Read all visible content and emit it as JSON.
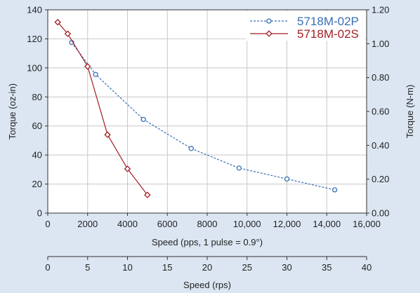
{
  "chart_data": {
    "type": "line",
    "title": "",
    "xlabel": "Speed (pps, 1 pulse = 0.9°)",
    "ylabel_left": "Torque (oz-in)",
    "ylabel_right": "Torque (N-m)",
    "xlabel_secondary": "Speed (rps)",
    "xlim": [
      0,
      16000
    ],
    "ylim_left": [
      0,
      140
    ],
    "ylim_right": [
      0,
      1.2
    ],
    "xlim_secondary": [
      0,
      40
    ],
    "x_ticks": [
      "0",
      "2000",
      "4000",
      "6000",
      "8000",
      "10,000",
      "12,000",
      "14,000",
      "16,000"
    ],
    "x_tick_values": [
      0,
      2000,
      4000,
      6000,
      8000,
      10000,
      12000,
      14000,
      16000
    ],
    "y_left_ticks": [
      "0",
      "20",
      "40",
      "60",
      "80",
      "100",
      "120",
      "140"
    ],
    "y_left_tick_values": [
      0,
      20,
      40,
      60,
      80,
      100,
      120,
      140
    ],
    "y_right_ticks": [
      "0.00",
      "0.20",
      "0.40",
      "0.60",
      "0.80",
      "1.00",
      "1.20"
    ],
    "y_right_tick_values": [
      0,
      0.2,
      0.4,
      0.6,
      0.8,
      1.0,
      1.2
    ],
    "secondary_ticks": [
      "0",
      "5",
      "10",
      "15",
      "20",
      "25",
      "30",
      "35",
      "40"
    ],
    "secondary_tick_values": [
      0,
      5,
      10,
      15,
      20,
      25,
      30,
      35,
      40
    ],
    "grid": true,
    "legend_position": "top-right",
    "series": [
      {
        "name": "5718M-02P",
        "color": "#3a6fb5",
        "line_style": "dashed",
        "marker": "circle",
        "x": [
          1200,
          2400,
          4800,
          7200,
          9600,
          12000,
          14400
        ],
        "y": [
          117.5,
          95.5,
          64.5,
          44.5,
          31,
          23.5,
          16
        ]
      },
      {
        "name": "5718M-02S",
        "color": "#a31f24",
        "line_style": "solid",
        "marker": "diamond",
        "x": [
          500,
          1000,
          2000,
          3000,
          4000,
          5000
        ],
        "y": [
          131.5,
          123.5,
          101,
          54,
          30.5,
          12.5
        ]
      }
    ]
  }
}
